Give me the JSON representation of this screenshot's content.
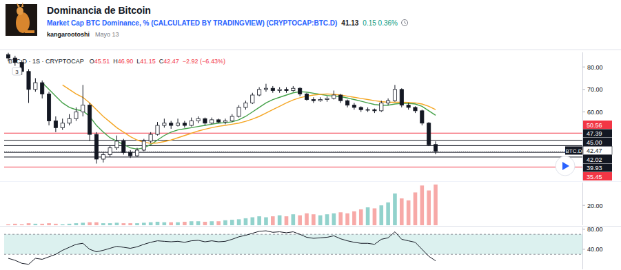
{
  "header": {
    "title": "Dominancia de Bitcoin",
    "symbol_name": "Market Cap BTC Dominance, % (CALCULATED BY TRADINGVIEW) (CRYPTOCAP:BTC.D)",
    "price": "41.13",
    "change": "0.15 0.36%",
    "author": "kangarootoshi",
    "date": "Mayo 13"
  },
  "chart_data": [
    {
      "type": "candlestick",
      "title": "BTC.D · 1S · CRYPTOCAP",
      "ohlc_legend": [
        {
          "key": "O",
          "text": "45.51"
        },
        {
          "key": "H",
          "text": "46.90"
        },
        {
          "key": "L",
          "text": "41.15"
        },
        {
          "key": "C",
          "text": "42.47"
        }
      ],
      "change_text": "−2.92 (−6.43%)",
      "indicator_count": "3",
      "color": "#131722",
      "categories": [
        null,
        null,
        null,
        null,
        null,
        null,
        null,
        null,
        null,
        null,
        null,
        null,
        null,
        null,
        null,
        null,
        null,
        null,
        null,
        null,
        null,
        null,
        null,
        null,
        null,
        null,
        null,
        null,
        null,
        null,
        null,
        null,
        null,
        null,
        null,
        null,
        null,
        null,
        null,
        null,
        null,
        null,
        null,
        null,
        null,
        null,
        null,
        null,
        null,
        null,
        null,
        null,
        null,
        null,
        null,
        null,
        null,
        null,
        null,
        null,
        null,
        null,
        null,
        null
      ],
      "open": [
        85.5,
        84,
        82,
        78,
        70,
        73,
        68,
        56,
        53,
        55,
        57,
        60,
        63,
        50,
        39,
        41,
        44,
        47,
        42,
        40.5,
        43,
        47,
        50,
        54,
        55,
        54,
        55,
        54,
        56,
        57,
        55,
        56.5,
        55.5,
        56,
        58,
        62,
        64,
        67.5,
        70,
        70.5,
        69.5,
        70,
        69.5,
        70.5,
        68,
        65.5,
        65,
        65.5,
        66,
        67.5,
        65,
        63,
        62,
        61,
        61,
        60.5,
        64,
        65,
        70,
        63,
        62,
        60.5,
        55,
        45.51
      ],
      "high": [
        86.3,
        85,
        83,
        79,
        75,
        74,
        69,
        58,
        57,
        59,
        62,
        72,
        64,
        51,
        42,
        45,
        49.5,
        48,
        43,
        44,
        48,
        51,
        55.5,
        57,
        56,
        57,
        56,
        57.5,
        58,
        57.5,
        57.5,
        57,
        57,
        59,
        63,
        65,
        68.5,
        71,
        72.5,
        71.5,
        71,
        71,
        71.5,
        71,
        68.5,
        66.5,
        66.5,
        67,
        69.5,
        68,
        65.5,
        64,
        62.5,
        62,
        61.5,
        65,
        66,
        72,
        70.5,
        64,
        62.5,
        61,
        55.5,
        46.9
      ],
      "low": [
        82.5,
        80.5,
        76.5,
        64,
        69,
        66,
        54,
        51,
        52,
        54,
        56,
        58,
        47,
        37,
        37.5,
        40,
        43,
        41,
        39.5,
        40,
        42.5,
        46,
        49.5,
        53,
        52.5,
        53.5,
        53,
        53.5,
        55,
        54,
        54.5,
        55,
        54.5,
        55.5,
        57.5,
        61,
        63.5,
        67,
        69,
        68.5,
        68.5,
        68.5,
        69,
        67,
        65,
        64,
        64.5,
        64.5,
        65.5,
        64,
        62,
        61,
        60,
        60,
        59.5,
        60,
        63,
        64.5,
        62,
        61,
        59.5,
        54,
        44.8,
        41.15
      ],
      "close": [
        84,
        82,
        78,
        70,
        73,
        68,
        56,
        53,
        55,
        57,
        60,
        63,
        50,
        39,
        41,
        44,
        47,
        42,
        40.5,
        43,
        47,
        50,
        54,
        55,
        54,
        55,
        54,
        56,
        57,
        55,
        56.5,
        55.5,
        56,
        58,
        62,
        64,
        67.5,
        70,
        70.5,
        69.5,
        70,
        69.5,
        70.5,
        68,
        65.5,
        65,
        65.5,
        66,
        67.5,
        65,
        63,
        62,
        61,
        61,
        60.5,
        64,
        65,
        70,
        63,
        62,
        60.5,
        55,
        45.39,
        42.47
      ],
      "series": [
        {
          "type": "line",
          "color": "#43a047",
          "values": [
            null,
            null,
            null,
            null,
            null,
            73,
            70,
            67,
            64,
            62,
            61,
            60.5,
            58,
            54,
            51,
            48.5,
            47,
            45.5,
            44,
            43.5,
            44,
            45.5,
            47.5,
            49.5,
            51,
            52,
            52.5,
            53,
            53.5,
            54,
            54.5,
            55,
            55.2,
            55.6,
            56.5,
            58,
            60,
            62,
            64,
            65.5,
            66.5,
            67.5,
            68.5,
            69,
            68.8,
            68.3,
            67.8,
            67.3,
            67,
            66.8,
            66.2,
            65.5,
            64.8,
            64,
            63.3,
            63,
            63,
            63.5,
            63.8,
            63.8,
            63.5,
            62.5,
            60.5,
            58.5
          ]
        },
        {
          "type": "line",
          "color": "#f5a623",
          "values": [
            null,
            null,
            null,
            null,
            null,
            null,
            null,
            null,
            72,
            70,
            68,
            66.5,
            64,
            61,
            58,
            55.5,
            53,
            51,
            49,
            47.5,
            46.5,
            46,
            46.2,
            46.8,
            47.5,
            48.5,
            49.5,
            50.5,
            51.5,
            52.3,
            53,
            53.6,
            54,
            54.5,
            55,
            55.8,
            56.8,
            58,
            59.5,
            61,
            62.5,
            64,
            65.3,
            66.3,
            67,
            67.5,
            67.8,
            68,
            67.8,
            67.5,
            67,
            66.5,
            66,
            65.5,
            65,
            64.6,
            64.3,
            64.3,
            64.3,
            64.2,
            64,
            63.5,
            62.5,
            61
          ]
        }
      ],
      "ylim": [
        29.5,
        86.5
      ],
      "yticks": [
        {
          "value": 80,
          "label": "80.00"
        },
        {
          "value": 70,
          "label": "70.00"
        },
        {
          "value": 60,
          "label": "60.00"
        }
      ],
      "grid": false,
      "price_lines": [
        {
          "value": 50.56,
          "label": "50.56",
          "color": "#f23645"
        },
        {
          "value": 47.39,
          "label": "47.39",
          "color": "#131722"
        },
        {
          "value": 45,
          "label": "45.00",
          "color": "#131722"
        },
        {
          "value": 42.02,
          "label": "42.02",
          "color": "#131722"
        },
        {
          "value": 39.93,
          "label": "39.93",
          "color": "#131722"
        },
        {
          "value": 35.45,
          "label": "35.45",
          "color": "#f23645"
        }
      ],
      "last_price": {
        "value": 42.47,
        "label": "42.47",
        "tag": "BTC.D"
      }
    },
    {
      "type": "bar",
      "categories": [
        null,
        null,
        null,
        null,
        null,
        null,
        null,
        null,
        null,
        null,
        null,
        null,
        null,
        null,
        null,
        null,
        null,
        null,
        null,
        null,
        null,
        null,
        null,
        null,
        null,
        null,
        null,
        null,
        null,
        null,
        null,
        null,
        null,
        null,
        null,
        null,
        null,
        null,
        null,
        null,
        null,
        null,
        null,
        null,
        null,
        null,
        null,
        null,
        null,
        null,
        null,
        null,
        null,
        null,
        null,
        null,
        null,
        null,
        null,
        null,
        null,
        null,
        null,
        null
      ],
      "values": [
        1,
        1.5,
        1,
        2,
        1.5,
        1.5,
        2,
        1.5,
        1,
        1.5,
        2,
        2.5,
        3,
        3,
        2,
        2,
        2.5,
        2,
        2,
        2,
        2.5,
        3,
        3.5,
        3,
        3,
        3,
        3.5,
        4,
        4,
        3.5,
        4,
        4,
        5,
        5.5,
        6,
        7,
        8,
        9,
        8,
        9,
        10,
        9,
        11,
        10,
        12,
        11,
        10,
        11,
        12,
        13,
        12,
        14,
        16,
        18,
        17,
        20,
        23,
        32,
        27,
        25,
        33,
        40,
        35,
        41
      ],
      "ylim": [
        0,
        43
      ],
      "yticks": [
        {
          "value": 20,
          "label": "20.00"
        }
      ],
      "grid": false
    },
    {
      "type": "line",
      "categories": [
        null,
        null,
        null,
        null,
        null,
        null,
        null,
        null,
        null,
        null,
        null,
        null,
        null,
        null,
        null,
        null,
        null,
        null,
        null,
        null,
        null,
        null,
        null,
        null,
        null,
        null,
        null,
        null,
        null,
        null,
        null,
        null,
        null,
        null,
        null,
        null,
        null,
        null,
        null,
        null,
        null,
        null,
        null,
        null,
        null,
        null,
        null,
        null,
        null,
        null,
        null,
        null,
        null,
        null,
        null,
        null,
        null,
        null,
        null,
        null,
        null,
        null,
        null,
        null
      ],
      "series": [
        {
          "color": "#131722",
          "values": [
            22,
            18,
            12,
            10,
            22,
            20,
            25,
            30,
            38,
            44,
            50,
            52,
            40,
            35,
            38,
            42,
            46,
            44,
            42,
            45,
            50,
            54,
            57,
            56,
            55,
            56,
            54,
            57,
            58,
            55,
            57,
            55,
            56,
            60,
            65,
            68,
            72,
            76,
            77,
            74,
            75,
            73,
            75,
            70,
            64,
            62,
            63,
            64,
            67,
            61,
            57,
            54,
            52,
            52,
            50,
            60,
            63,
            75,
            60,
            57,
            54,
            40,
            26,
            17
          ]
        }
      ],
      "bands": [
        30,
        70
      ],
      "ylim": [
        0,
        84
      ],
      "yticks": [
        {
          "value": 80,
          "label": "80.00"
        },
        {
          "value": 40,
          "label": "40.00"
        }
      ],
      "grid": false
    }
  ]
}
